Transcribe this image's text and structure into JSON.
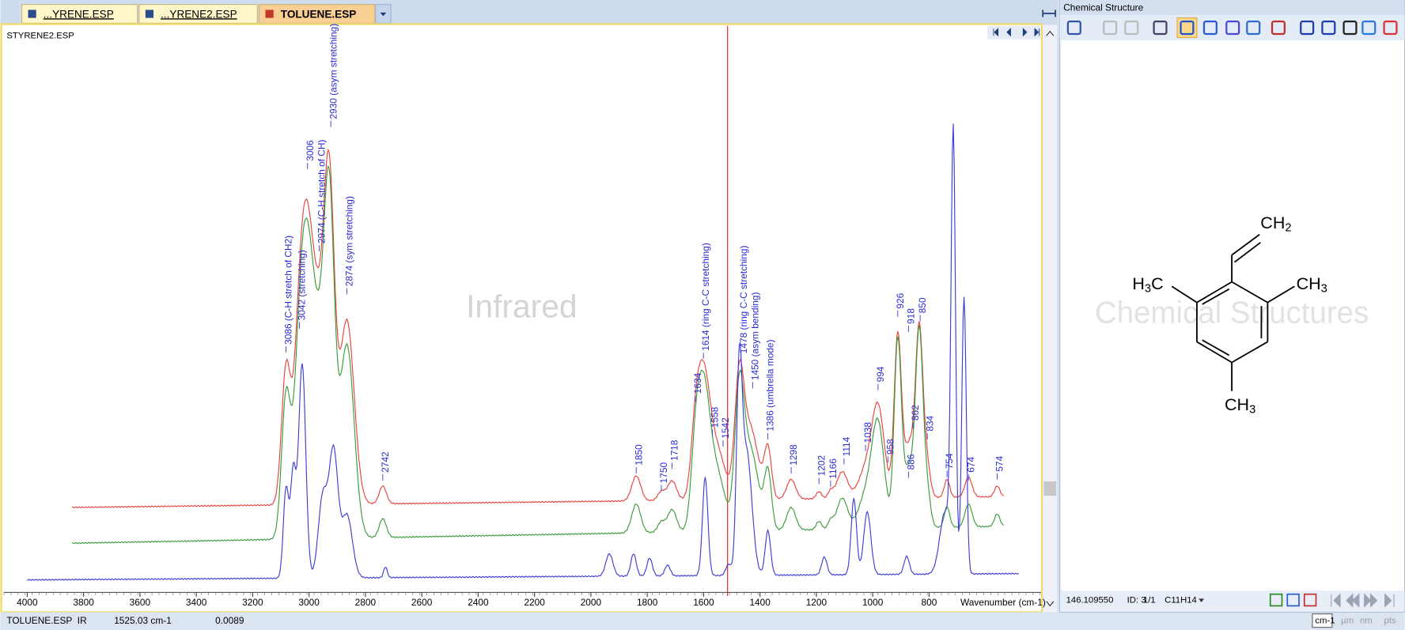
{
  "tabs": [
    "...YRENE.ESP",
    "...YRENE2.ESP",
    "TOLUENE.ESP"
  ],
  "spectrum": {
    "title": "STYRENE2.ESP",
    "watermark": "Infrared",
    "x_axis": {
      "ticks": [
        4000,
        3800,
        3600,
        3400,
        3200,
        3000,
        2800,
        2600,
        2400,
        2200,
        2000,
        1800,
        1600,
        1400,
        1200,
        1000,
        800
      ],
      "label": "Wavenumber (cm-1)"
    },
    "peak_labels": [
      "3086 (C-H stretch of CH2)",
      "3042 (stretching)",
      "3006",
      "2974 (C-H stretch of CH)",
      "2930 (asym stretching)",
      "2874 (sym stretching)",
      "2742",
      "1850",
      "1750",
      "1718",
      "1634",
      "1614 (ring C-C stretching)",
      "1558",
      "1542",
      "1478 (ring C-C stretching)",
      "1450 (asym bending)",
      "1386 (umbrella mode)",
      "1298",
      "1202",
      "1166",
      "1114",
      "1038",
      "994",
      "958",
      "926",
      "918",
      "886",
      "862",
      "850",
      "834",
      "754",
      "674",
      "574"
    ]
  },
  "structure_panel": {
    "title": "Chemical Structure",
    "watermark": "Chemical Structures",
    "atoms": [
      [
        "CH",
        "2"
      ],
      [
        "H",
        "3",
        "C"
      ],
      [
        "CH",
        "3"
      ],
      [
        "CH",
        "3"
      ]
    ],
    "status": [
      "146.109550",
      "ID: 3",
      "1/1",
      "C11H14"
    ]
  },
  "status_bar": {
    "file": "TOLUENE.ESP",
    "technique": "IR",
    "position": "1525.03 cm-1",
    "value": "0.0089"
  },
  "units": [
    "cm-1",
    "µm",
    "nm",
    "pts"
  ]
}
